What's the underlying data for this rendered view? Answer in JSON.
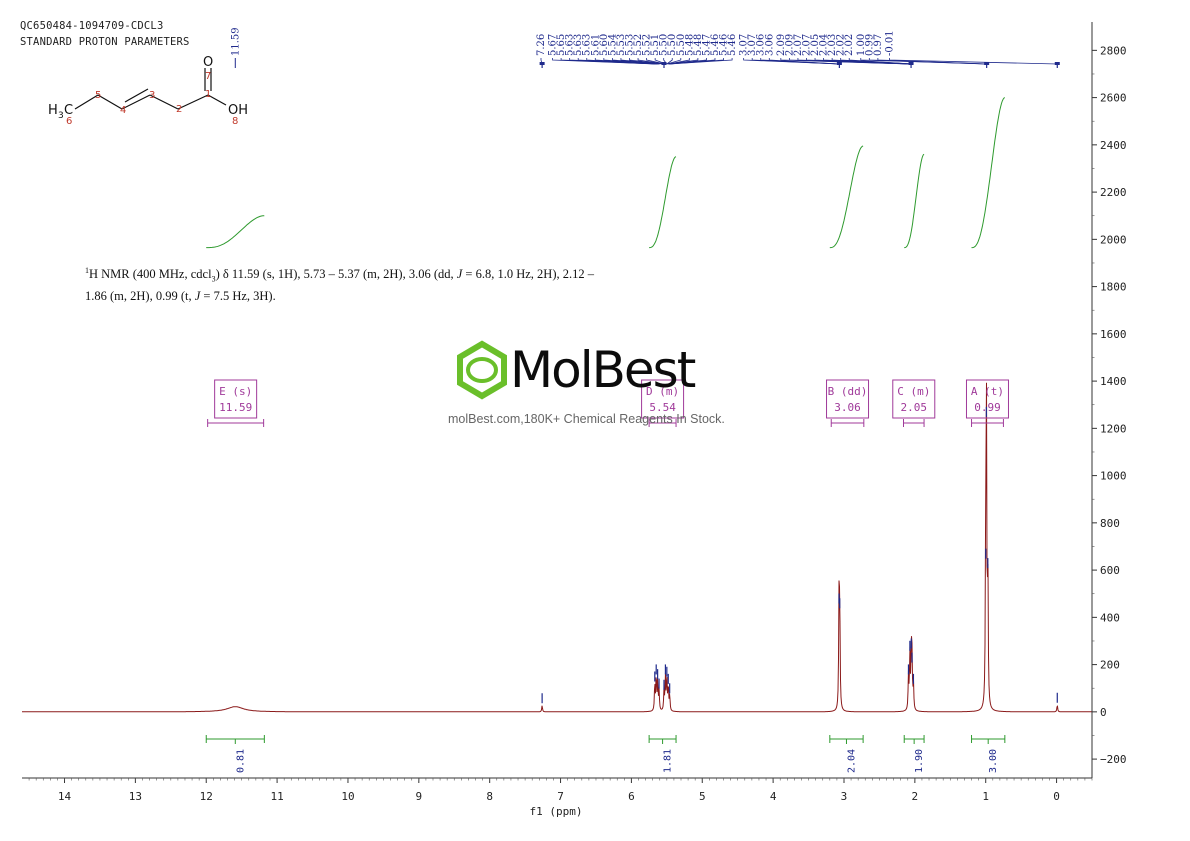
{
  "header": {
    "sample_id": "QC650484-1094709-CDCL3",
    "experiment": "STANDARD PROTON PARAMETERS"
  },
  "structure": {
    "atom_labels": [
      {
        "text": "H3C",
        "role": "methyl"
      },
      {
        "text": "O",
        "role": "carbonyl-oxygen"
      },
      {
        "text": "OH",
        "role": "hydroxyl"
      }
    ],
    "atom_numbers": [
      "1",
      "2",
      "3",
      "4",
      "5",
      "6",
      "7",
      "8"
    ]
  },
  "report": {
    "prefix": "1",
    "text_line1": "H NMR (400 MHz, cdcl",
    "text_sub": "3",
    "text_line1b": ") δ 11.59 (s, 1H), 5.73 – 5.37 (m, 2H), 3.06 (dd, ",
    "text_j1": "J",
    "text_line1c": " = 6.8, 1.0 Hz, 2H), 2.12 –",
    "text_line2a": "1.86 (m, 2H), 0.99 (t, ",
    "text_j2": "J",
    "text_line2b": " = 7.5 Hz, 3H)."
  },
  "watermark": {
    "brand": "MolBest",
    "tagline": "molBest.com,180K+ Chemical Reagents In Stock.",
    "color": "#6abf2a"
  },
  "chart_data": {
    "type": "line",
    "title": "",
    "xlabel": "f1 (ppm)",
    "ylabel": "",
    "x_reversed": true,
    "xlim": [
      14.6,
      -0.5
    ],
    "ylim": [
      -280,
      2920
    ],
    "x_ticks": [
      14,
      13,
      12,
      11,
      10,
      9,
      8,
      7,
      6,
      5,
      4,
      3,
      2,
      1,
      0
    ],
    "y_ticks": [
      -200,
      0,
      200,
      400,
      600,
      800,
      1000,
      1200,
      1400,
      1600,
      1800,
      2000,
      2200,
      2400,
      2600,
      2800
    ],
    "spectrum_color": "#8b1a1a",
    "integral_color": "#2e9a2e",
    "label_color": "#1f2a8c",
    "region_color": "#a03a9a",
    "peaks": [
      {
        "ppm": 11.59,
        "height": 22,
        "width": 0.14
      },
      {
        "ppm": 7.26,
        "height": 28,
        "width": 0.006
      },
      {
        "ppm": 5.67,
        "height": 120,
        "width": 0.006
      },
      {
        "ppm": 5.65,
        "height": 150,
        "width": 0.006
      },
      {
        "ppm": 5.63,
        "height": 130,
        "width": 0.006
      },
      {
        "ppm": 5.61,
        "height": 90,
        "width": 0.006
      },
      {
        "ppm": 5.54,
        "height": 85,
        "width": 0.006
      },
      {
        "ppm": 5.52,
        "height": 150,
        "width": 0.006
      },
      {
        "ppm": 5.5,
        "height": 140,
        "width": 0.006
      },
      {
        "ppm": 5.48,
        "height": 110,
        "width": 0.006
      },
      {
        "ppm": 5.46,
        "height": 70,
        "width": 0.006
      },
      {
        "ppm": 3.07,
        "height": 450,
        "width": 0.006
      },
      {
        "ppm": 3.06,
        "height": 430,
        "width": 0.006
      },
      {
        "ppm": 2.09,
        "height": 150,
        "width": 0.006
      },
      {
        "ppm": 2.07,
        "height": 250,
        "width": 0.006
      },
      {
        "ppm": 2.05,
        "height": 260,
        "width": 0.006
      },
      {
        "ppm": 2.04,
        "height": 200,
        "width": 0.006
      },
      {
        "ppm": 2.02,
        "height": 110,
        "width": 0.006
      },
      {
        "ppm": 1.0,
        "height": 640,
        "width": 0.006
      },
      {
        "ppm": 0.99,
        "height": 1240,
        "width": 0.006
      },
      {
        "ppm": 0.97,
        "height": 600,
        "width": 0.006
      },
      {
        "ppm": -0.01,
        "height": 30,
        "width": 0.006
      }
    ],
    "peak_labels": [
      "7.26",
      "5.67",
      "5.65",
      "5.63",
      "5.63",
      "5.63",
      "5.61",
      "5.60",
      "5.54",
      "5.53",
      "5.53",
      "5.52",
      "5.52",
      "5.51",
      "5.50",
      "5.50",
      "5.50",
      "5.48",
      "5.48",
      "5.47",
      "5.46",
      "5.46",
      "5.46",
      "3.07",
      "3.07",
      "3.06",
      "3.06",
      "2.09",
      "2.09",
      "2.07",
      "2.07",
      "2.05",
      "2.04",
      "2.03",
      "2.02",
      "2.02",
      "1.00",
      "0.99",
      "0.97",
      "-0.01"
    ],
    "isolated_labels": [
      {
        "text": "11.59",
        "ppm": 11.59
      }
    ],
    "integrals": [
      {
        "label": "0.81",
        "from": 12.0,
        "to": 11.18,
        "rise": 135,
        "start": 1965
      },
      {
        "label": "1.81",
        "from": 5.75,
        "to": 5.37,
        "rise": 385,
        "start": 1965
      },
      {
        "label": "2.04",
        "from": 3.2,
        "to": 2.73,
        "rise": 430,
        "start": 1965
      },
      {
        "label": "1.90",
        "from": 2.15,
        "to": 1.87,
        "rise": 395,
        "start": 1965
      },
      {
        "label": "3.00",
        "from": 1.2,
        "to": 0.73,
        "rise": 635,
        "start": 1965
      }
    ],
    "multiplets": [
      {
        "letter": "E",
        "type": "(s)",
        "shift": "11.59",
        "from": 11.98,
        "to": 11.19
      },
      {
        "letter": "D",
        "type": "(m)",
        "shift": "5.54",
        "from": 5.75,
        "to": 5.37
      },
      {
        "letter": "B",
        "type": "(dd)",
        "shift": "3.06",
        "from": 3.18,
        "to": 2.72
      },
      {
        "letter": "C",
        "type": "(m)",
        "shift": "2.05",
        "from": 2.16,
        "to": 1.87
      },
      {
        "letter": "A",
        "type": "(t)",
        "shift": "0.99",
        "from": 1.2,
        "to": 0.75
      }
    ]
  }
}
